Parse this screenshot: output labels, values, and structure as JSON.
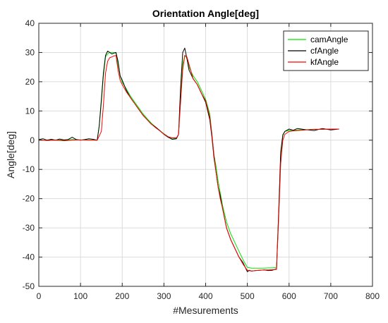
{
  "chart_data": {
    "type": "line",
    "title": "Orientation Angle[deg]",
    "xlabel": "#Mesurements",
    "ylabel": "Angle[deg]",
    "xlim": [
      0,
      800
    ],
    "ylim": [
      -50,
      40
    ],
    "xticks": [
      "0",
      "100",
      "200",
      "300",
      "400",
      "500",
      "600",
      "700",
      "800"
    ],
    "yticks": [
      "40",
      "30",
      "20",
      "10",
      "0",
      "-10",
      "-20",
      "-30",
      "-40",
      "-50"
    ],
    "grid": true,
    "legend_position": "top-right",
    "colors": {
      "camAngle": "#00e600",
      "cfAngle": "#000000",
      "kfAngle": "#ff0000"
    },
    "series": [
      {
        "name": "camAngle",
        "x": [
          0,
          20,
          40,
          60,
          80,
          100,
          120,
          140,
          145,
          150,
          155,
          160,
          165,
          170,
          175,
          180,
          185,
          190,
          195,
          200,
          210,
          220,
          230,
          240,
          250,
          260,
          270,
          280,
          290,
          300,
          310,
          320,
          330,
          335,
          340,
          345,
          350,
          355,
          360,
          370,
          380,
          390,
          400,
          410,
          415,
          420,
          425,
          430,
          435,
          440,
          450,
          460,
          470,
          480,
          490,
          500,
          510,
          520,
          530,
          540,
          550,
          560,
          570,
          575,
          580,
          585,
          590,
          600,
          620,
          640,
          660,
          680,
          700,
          720
        ],
        "y": [
          0,
          0,
          0.1,
          0,
          0.2,
          0.1,
          0,
          0,
          5,
          13,
          22,
          28.5,
          29.5,
          30,
          30,
          30,
          29.8,
          26,
          22,
          19.8,
          17.5,
          15,
          13,
          11,
          9,
          7.3,
          5.8,
          4.5,
          3.3,
          2.2,
          1.2,
          0.7,
          0.6,
          2,
          15,
          26,
          29,
          28,
          25,
          22,
          20,
          17,
          14,
          9,
          2,
          -5,
          -9,
          -14,
          -18,
          -22,
          -28,
          -32,
          -35,
          -38,
          -41,
          -43.5,
          -43.8,
          -43.8,
          -43.8,
          -43.8,
          -43.7,
          -43.7,
          -43.5,
          -25,
          -5,
          1.5,
          3,
          3.3,
          3.5,
          3.6,
          3.7,
          3.7,
          3.8,
          3.8
        ]
      },
      {
        "name": "cfAngle",
        "x": [
          0,
          10,
          20,
          30,
          40,
          50,
          60,
          70,
          80,
          90,
          100,
          110,
          120,
          130,
          140,
          145,
          150,
          155,
          160,
          165,
          170,
          175,
          180,
          185,
          190,
          195,
          200,
          210,
          220,
          230,
          240,
          250,
          260,
          270,
          280,
          290,
          300,
          310,
          320,
          330,
          335,
          340,
          345,
          350,
          355,
          360,
          370,
          380,
          390,
          400,
          410,
          415,
          420,
          425,
          430,
          435,
          440,
          450,
          460,
          470,
          480,
          490,
          500,
          505,
          510,
          520,
          530,
          540,
          550,
          560,
          570,
          575,
          580,
          585,
          590,
          600,
          610,
          620,
          640,
          660,
          680,
          700,
          720
        ],
        "y": [
          0.2,
          0.5,
          0,
          0.3,
          0,
          0.4,
          0.1,
          0.2,
          1,
          0.2,
          0,
          0.2,
          0.5,
          0.3,
          0,
          5,
          14,
          23,
          29,
          30.5,
          30,
          29.5,
          29.8,
          30,
          27,
          22,
          20.5,
          17,
          14.5,
          12.5,
          10.5,
          8.5,
          7,
          5.5,
          4.5,
          3.3,
          2,
          1,
          0.3,
          0.5,
          2,
          18,
          30,
          31.5,
          28,
          24,
          21,
          19,
          16,
          13,
          7,
          1,
          -6,
          -11,
          -16,
          -19,
          -23,
          -30,
          -34,
          -37,
          -40,
          -42,
          -45,
          -44.5,
          -44.8,
          -44.6,
          -44.5,
          -44.4,
          -44.6,
          -44.5,
          -44,
          -25,
          -4,
          1.8,
          3,
          3.8,
          3.4,
          4,
          3.6,
          3.3,
          4,
          3.5,
          3.8
        ]
      },
      {
        "name": "kfAngle",
        "x": [
          0,
          20,
          40,
          60,
          80,
          100,
          120,
          140,
          150,
          155,
          160,
          165,
          170,
          175,
          180,
          185,
          190,
          195,
          200,
          210,
          220,
          230,
          240,
          250,
          260,
          270,
          280,
          290,
          300,
          310,
          320,
          330,
          335,
          340,
          345,
          350,
          355,
          360,
          370,
          380,
          390,
          400,
          410,
          415,
          420,
          425,
          430,
          435,
          440,
          450,
          460,
          470,
          480,
          490,
          500,
          510,
          520,
          530,
          540,
          550,
          560,
          570,
          575,
          580,
          585,
          590,
          600,
          620,
          640,
          660,
          680,
          700,
          720
        ],
        "y": [
          0,
          -0.1,
          0,
          -0.2,
          0,
          0.1,
          0,
          0,
          3,
          12,
          23,
          27,
          28.2,
          28.5,
          28.8,
          29,
          24,
          20.5,
          19,
          16.5,
          14.5,
          12.5,
          10.5,
          8.5,
          7,
          5.5,
          4.3,
          3.2,
          2.1,
          1.2,
          0.8,
          0.8,
          2,
          13,
          24,
          29,
          28.5,
          26,
          21,
          19,
          16,
          13.5,
          8,
          2,
          -5,
          -11,
          -16,
          -20,
          -23,
          -30,
          -34,
          -37,
          -40,
          -42.5,
          -44.5,
          -44.8,
          -44.6,
          -44.5,
          -44.4,
          -44.4,
          -44.3,
          -44.2,
          -27,
          -8,
          0,
          2,
          3,
          3.3,
          3.5,
          3.7,
          3.7,
          3.8,
          3.8
        ]
      }
    ]
  }
}
